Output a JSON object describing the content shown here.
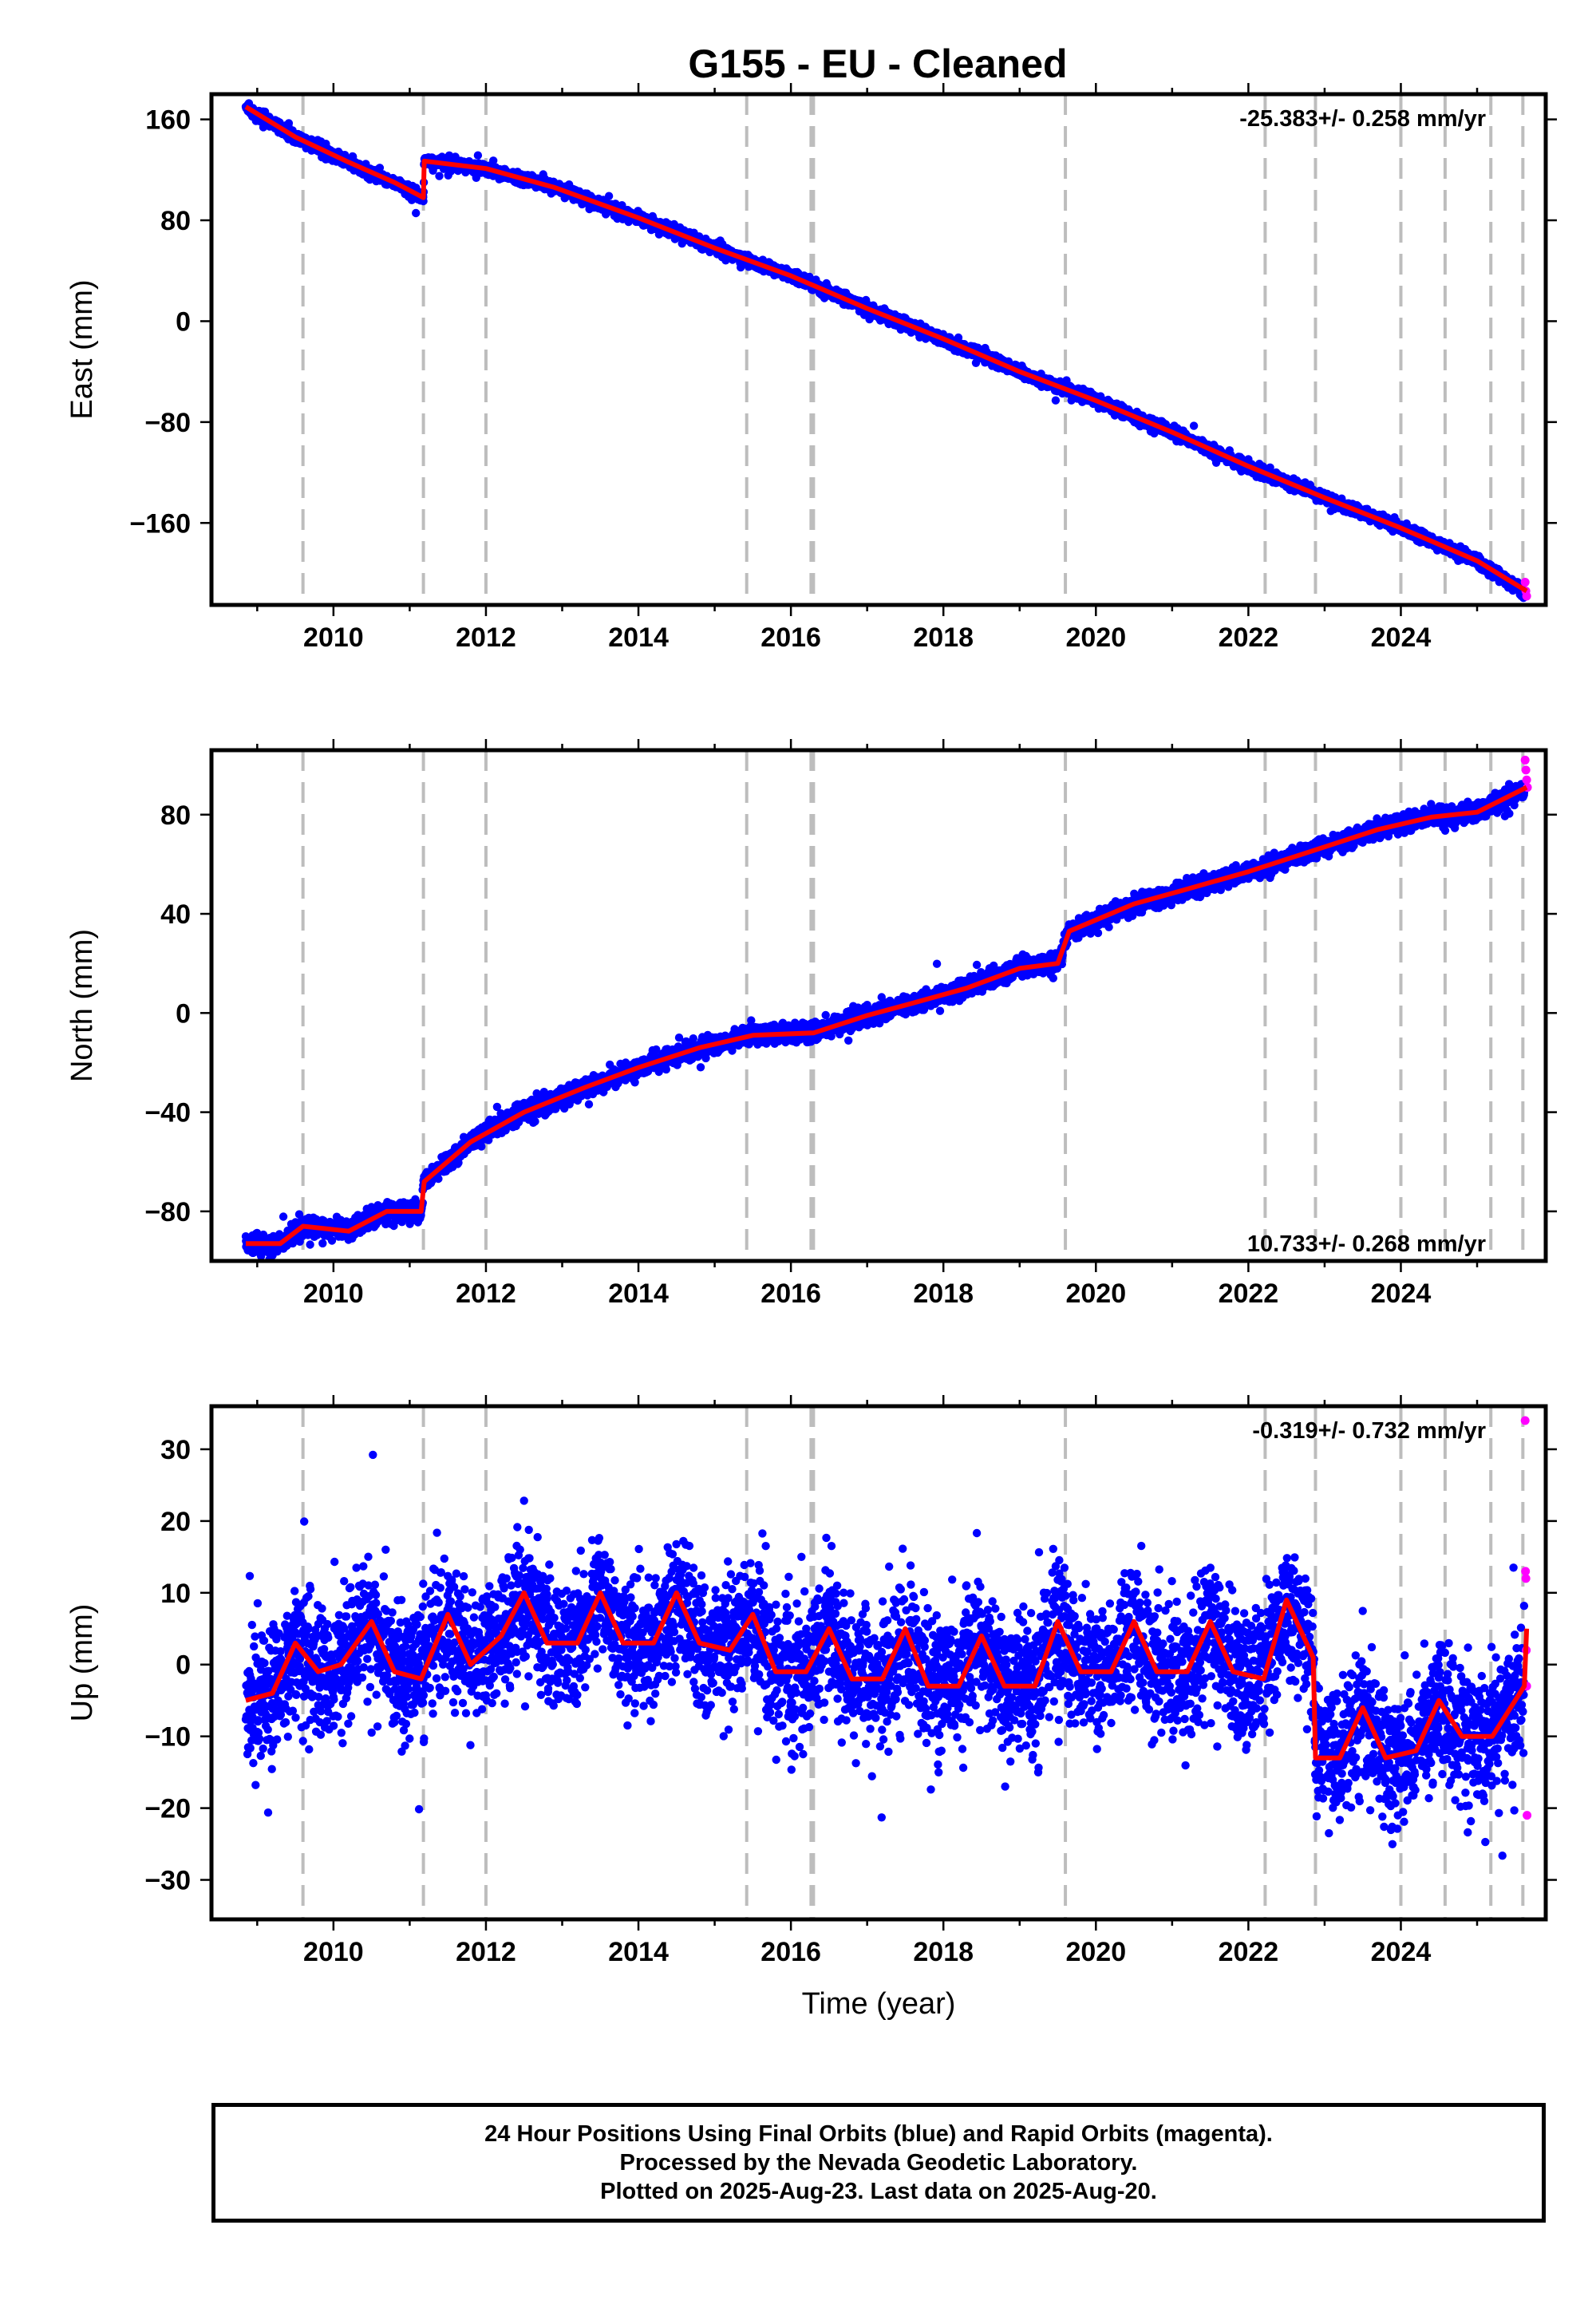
{
  "title": "G155  - EU - Cleaned",
  "footer": {
    "line1": "24 Hour Positions Using Final Orbits (blue) and Rapid Orbits (magenta).",
    "line2": "Processed by the Nevada Geodetic Laboratory.",
    "line3": "Plotted on 2025-Aug-23. Last data on 2025-Aug-20."
  },
  "colors": {
    "final_orbits": "#0000ff",
    "rapid_orbits": "#ff00ff",
    "model_fit": "#ff0000",
    "event_lines": "#bdbdbd"
  },
  "chart_data": [
    {
      "type": "scatter",
      "panel": "east",
      "ylabel": "East (mm)",
      "xlabel": "",
      "rate_label": "-25.383+/- 0.258 mm/yr",
      "rate_label_position": "top-right",
      "xlim": [
        2008.4,
        2025.9
      ],
      "ylim": [
        -225,
        180
      ],
      "xticks": [
        2010,
        2012,
        2014,
        2016,
        2018,
        2020,
        2022,
        2024
      ],
      "xtick_labels": [
        "2010",
        "2012",
        "2014",
        "2016",
        "2018",
        "2020",
        "2022",
        "2024"
      ],
      "yticks": [
        160,
        80,
        0,
        -80,
        -160
      ],
      "ytick_labels": [
        "160",
        "80",
        "0",
        "−80",
        "−160"
      ],
      "event_lines": [
        2009.6,
        2011.18,
        2012.0,
        2015.42,
        2016.28,
        2019.6,
        2022.22,
        2022.88,
        2024.0,
        2024.58,
        2025.18,
        2025.6
      ],
      "heavy_event_lines": [
        2016.28
      ],
      "series": [
        {
          "name": "Final Orbits",
          "role": "daily-positions",
          "color": "#0000ff",
          "start": 2008.85,
          "end": 2025.62,
          "noise": 2.2,
          "x": [
            2008.85,
            2009.5,
            2010.2,
            2010.8,
            2011.18,
            2011.19,
            2012.0,
            2012.9,
            2014.0,
            2015.0,
            2016.0,
            2017.0,
            2018.0,
            2019.0,
            2020.0,
            2021.0,
            2022.0,
            2023.0,
            2024.0,
            2025.0,
            2025.62
          ],
          "y": [
            170,
            146,
            126,
            110,
            98,
            127,
            121,
            106,
            82,
            58,
            36,
            10,
            -14,
            -40,
            -63,
            -88,
            -115,
            -140,
            -164,
            -190,
            -215
          ]
        },
        {
          "name": "Rapid Orbits",
          "role": "daily-positions",
          "color": "#ff00ff",
          "x": [
            2025.63,
            2025.64,
            2025.65
          ],
          "y": [
            -207,
            -214,
            -218
          ]
        },
        {
          "name": "Model",
          "role": "fit-line",
          "color": "#ff0000",
          "x": [
            2008.85,
            2009.5,
            2010.2,
            2010.8,
            2011.18,
            2011.19,
            2012.0,
            2012.9,
            2014.0,
            2015.0,
            2016.0,
            2017.0,
            2018.0,
            2019.0,
            2020.0,
            2021.0,
            2022.0,
            2023.0,
            2024.0,
            2025.0,
            2025.65
          ],
          "y": [
            170,
            146,
            126,
            110,
            98,
            127,
            121,
            106,
            82,
            58,
            36,
            10,
            -14,
            -40,
            -63,
            -88,
            -115,
            -140,
            -164,
            -190,
            -214
          ]
        }
      ]
    },
    {
      "type": "scatter",
      "panel": "north",
      "ylabel": "North (mm)",
      "xlabel": "",
      "rate_label": "10.733+/- 0.268 mm/yr",
      "rate_label_position": "bottom-right",
      "xlim": [
        2008.4,
        2025.9
      ],
      "ylim": [
        -100,
        106
      ],
      "xticks": [
        2010,
        2012,
        2014,
        2016,
        2018,
        2020,
        2022,
        2024
      ],
      "xtick_labels": [
        "2010",
        "2012",
        "2014",
        "2016",
        "2018",
        "2020",
        "2022",
        "2024"
      ],
      "yticks": [
        80,
        40,
        0,
        -40,
        -80
      ],
      "ytick_labels": [
        "80",
        "40",
        "0",
        "−40",
        "−80"
      ],
      "event_lines": [
        2009.6,
        2011.18,
        2012.0,
        2015.42,
        2016.28,
        2019.6,
        2022.22,
        2022.88,
        2024.0,
        2024.58,
        2025.18,
        2025.6
      ],
      "heavy_event_lines": [
        2016.28
      ],
      "series": [
        {
          "name": "Final Orbits",
          "role": "daily-positions",
          "color": "#0000ff",
          "start": 2008.85,
          "end": 2025.62,
          "noise": 1.8,
          "x": [
            2008.85,
            2009.3,
            2009.6,
            2010.2,
            2010.7,
            2011.15,
            2011.19,
            2011.8,
            2012.5,
            2013.3,
            2014.0,
            2014.8,
            2015.5,
            2016.3,
            2017.0,
            2017.6,
            2018.3,
            2019.0,
            2019.5,
            2019.65,
            2020.5,
            2021.2,
            2022.0,
            2022.9,
            2023.7,
            2024.4,
            2025.0,
            2025.62
          ],
          "y": [
            -93,
            -93,
            -86,
            -88,
            -80,
            -80,
            -68,
            -52,
            -40,
            -30,
            -22,
            -14,
            -9,
            -8,
            -1,
            4,
            10,
            18,
            20,
            33,
            44,
            50,
            57,
            66,
            74,
            79,
            81,
            90
          ]
        },
        {
          "name": "Rapid Orbits",
          "role": "daily-positions",
          "color": "#ff00ff",
          "x": [
            2025.63,
            2025.64,
            2025.65,
            2025.66
          ],
          "y": [
            102,
            98,
            94,
            91
          ]
        },
        {
          "name": "Model",
          "role": "fit-line",
          "color": "#ff0000",
          "x": [
            2008.85,
            2009.3,
            2009.6,
            2010.2,
            2010.7,
            2011.15,
            2011.19,
            2011.8,
            2012.5,
            2013.3,
            2014.0,
            2014.8,
            2015.5,
            2016.3,
            2017.0,
            2017.6,
            2018.3,
            2019.0,
            2019.5,
            2019.65,
            2020.5,
            2021.2,
            2022.0,
            2022.9,
            2023.7,
            2024.4,
            2025.0,
            2025.65
          ],
          "y": [
            -93,
            -93,
            -86,
            -88,
            -80,
            -80,
            -68,
            -52,
            -40,
            -30,
            -22,
            -14,
            -9,
            -8,
            -1,
            4,
            10,
            18,
            20,
            33,
            44,
            50,
            57,
            66,
            74,
            79,
            81,
            91
          ]
        }
      ]
    },
    {
      "type": "scatter",
      "panel": "up",
      "ylabel": "Up (mm)",
      "xlabel": "Time (year)",
      "rate_label": "-0.319+/- 0.732 mm/yr",
      "rate_label_position": "top-right",
      "xlim": [
        2008.4,
        2025.9
      ],
      "ylim": [
        -35.5,
        36
      ],
      "xticks": [
        2010,
        2012,
        2014,
        2016,
        2018,
        2020,
        2022,
        2024
      ],
      "xtick_labels": [
        "2010",
        "2012",
        "2014",
        "2016",
        "2018",
        "2020",
        "2022",
        "2024"
      ],
      "yticks": [
        30,
        20,
        10,
        0,
        -10,
        -20,
        -30
      ],
      "ytick_labels": [
        "30",
        "20",
        "10",
        "0",
        "−10",
        "−20",
        "−30"
      ],
      "event_lines": [
        2009.6,
        2011.18,
        2012.0,
        2015.42,
        2016.28,
        2019.6,
        2022.22,
        2022.88,
        2024.0,
        2024.58,
        2025.18,
        2025.6
      ],
      "heavy_event_lines": [
        2016.28
      ],
      "series": [
        {
          "name": "Final Orbits",
          "role": "daily-positions",
          "color": "#0000ff",
          "start": 2008.85,
          "end": 2025.62,
          "noise": 4.6,
          "x": [
            2008.85,
            2009.2,
            2009.5,
            2009.8,
            2010.1,
            2010.5,
            2010.8,
            2011.15,
            2011.5,
            2011.8,
            2012.2,
            2012.5,
            2012.8,
            2013.2,
            2013.5,
            2013.8,
            2014.2,
            2014.5,
            2014.8,
            2015.2,
            2015.5,
            2015.8,
            2016.2,
            2016.5,
            2016.8,
            2017.2,
            2017.5,
            2017.8,
            2018.2,
            2018.5,
            2018.8,
            2019.2,
            2019.5,
            2019.8,
            2020.2,
            2020.5,
            2020.8,
            2021.2,
            2021.5,
            2021.8,
            2022.2,
            2022.5,
            2022.85,
            2022.88,
            2023.2,
            2023.5,
            2023.8,
            2024.2,
            2024.5,
            2024.8,
            2025.2,
            2025.62
          ],
          "y": [
            -5,
            -4,
            3,
            -1,
            0,
            6,
            -1,
            -2,
            7,
            0,
            4,
            10,
            3,
            3,
            10,
            3,
            3,
            10,
            3,
            2,
            7,
            -1,
            -1,
            5,
            -2,
            -2,
            5,
            -3,
            -3,
            4,
            -3,
            -3,
            6,
            -1,
            -1,
            6,
            -1,
            -1,
            6,
            -1,
            -2,
            9,
            1,
            -13,
            -13,
            -6,
            -13,
            -12,
            -5,
            -10,
            -10,
            -3
          ]
        },
        {
          "name": "Rapid Orbits",
          "role": "daily-positions",
          "color": "#ff00ff",
          "x": [
            2025.63,
            2025.635,
            2025.64,
            2025.645,
            2025.65,
            2025.655
          ],
          "y": [
            34,
            13,
            12,
            2,
            -3,
            -21
          ]
        },
        {
          "name": "Model",
          "role": "fit-line",
          "color": "#ff0000",
          "x": [
            2008.85,
            2009.2,
            2009.5,
            2009.8,
            2010.1,
            2010.5,
            2010.8,
            2011.15,
            2011.5,
            2011.8,
            2012.2,
            2012.5,
            2012.8,
            2013.2,
            2013.5,
            2013.8,
            2014.2,
            2014.5,
            2014.8,
            2015.2,
            2015.5,
            2015.8,
            2016.2,
            2016.5,
            2016.8,
            2017.2,
            2017.5,
            2017.8,
            2018.2,
            2018.5,
            2018.8,
            2019.2,
            2019.5,
            2019.8,
            2020.2,
            2020.5,
            2020.8,
            2021.2,
            2021.5,
            2021.8,
            2022.2,
            2022.5,
            2022.85,
            2022.88,
            2023.2,
            2023.5,
            2023.8,
            2024.2,
            2024.5,
            2024.8,
            2025.2,
            2025.62,
            2025.65
          ],
          "y": [
            -5,
            -4,
            3,
            -1,
            0,
            6,
            -1,
            -2,
            7,
            0,
            4,
            10,
            3,
            3,
            10,
            3,
            3,
            10,
            3,
            2,
            7,
            -1,
            -1,
            5,
            -2,
            -2,
            5,
            -3,
            -3,
            4,
            -3,
            -3,
            6,
            -1,
            -1,
            6,
            -1,
            -1,
            6,
            -1,
            -2,
            9,
            1,
            -13,
            -13,
            -6,
            -13,
            -12,
            -5,
            -10,
            -10,
            -3,
            5
          ]
        }
      ]
    }
  ]
}
